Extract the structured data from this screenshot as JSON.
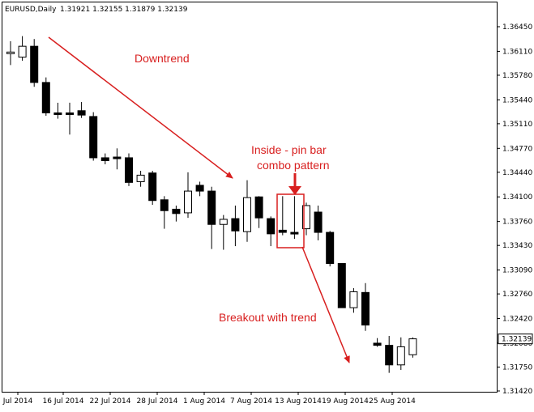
{
  "header": {
    "symbol_label": "EURUSD,Daily",
    "ohlc_values": "1.31921 1.32155 1.31879 1.32139"
  },
  "colors": {
    "annotation": "#d81f1f",
    "candle_bear": "#000000",
    "candle_bull": "#ffffff",
    "frame": "#000000",
    "last_price_box": "#ffffff"
  },
  "chart_data": {
    "type": "candlestick",
    "y_axis_ticks": [
      "1.36450",
      "1.36110",
      "1.35780",
      "1.35440",
      "1.35110",
      "1.34770",
      "1.34440",
      "1.34100",
      "1.33760",
      "1.33430",
      "1.33090",
      "1.32760",
      "1.32420",
      "1.32080",
      "1.31750",
      "1.31420"
    ],
    "x_axis_ticks": [
      "Jul 2014",
      "16 Jul 2014",
      "22 Jul 2014",
      "28 Jul 2014",
      "1 Aug 2014",
      "7 Aug 2014",
      "13 Aug 2014",
      "19 Aug 2014",
      "25 Aug 2014"
    ],
    "ylim": [
      1.314,
      1.367
    ],
    "last_price_label": "1.32139",
    "last_price": 1.32139,
    "candles": [
      {
        "o": 1.361,
        "h": 1.3625,
        "l": 1.3592,
        "c": 1.361
      },
      {
        "o": 1.3603,
        "h": 1.3632,
        "l": 1.3598,
        "c": 1.3618
      },
      {
        "o": 1.3618,
        "h": 1.3628,
        "l": 1.3562,
        "c": 1.3568
      },
      {
        "o": 1.3568,
        "h": 1.3575,
        "l": 1.3522,
        "c": 1.3526
      },
      {
        "o": 1.3526,
        "h": 1.354,
        "l": 1.3518,
        "c": 1.3524
      },
      {
        "o": 1.3526,
        "h": 1.354,
        "l": 1.3496,
        "c": 1.3524
      },
      {
        "o": 1.3529,
        "h": 1.3541,
        "l": 1.3519,
        "c": 1.3523
      },
      {
        "o": 1.3521,
        "h": 1.3527,
        "l": 1.346,
        "c": 1.3464
      },
      {
        "o": 1.3464,
        "h": 1.347,
        "l": 1.3455,
        "c": 1.346
      },
      {
        "o": 1.3465,
        "h": 1.3477,
        "l": 1.3448,
        "c": 1.3463
      },
      {
        "o": 1.3464,
        "h": 1.347,
        "l": 1.3425,
        "c": 1.343
      },
      {
        "o": 1.3431,
        "h": 1.3446,
        "l": 1.3424,
        "c": 1.344
      },
      {
        "o": 1.3443,
        "h": 1.3446,
        "l": 1.3399,
        "c": 1.3405
      },
      {
        "o": 1.3406,
        "h": 1.3411,
        "l": 1.3366,
        "c": 1.3391
      },
      {
        "o": 1.3393,
        "h": 1.3398,
        "l": 1.3376,
        "c": 1.3387
      },
      {
        "o": 1.3388,
        "h": 1.3444,
        "l": 1.3381,
        "c": 1.3418
      },
      {
        "o": 1.3426,
        "h": 1.3431,
        "l": 1.3411,
        "c": 1.3418
      },
      {
        "o": 1.3418,
        "h": 1.3424,
        "l": 1.3338,
        "c": 1.3372
      },
      {
        "o": 1.3372,
        "h": 1.3385,
        "l": 1.3337,
        "c": 1.3379
      },
      {
        "o": 1.338,
        "h": 1.3398,
        "l": 1.3342,
        "c": 1.3363
      },
      {
        "o": 1.3362,
        "h": 1.3433,
        "l": 1.3348,
        "c": 1.3409
      },
      {
        "o": 1.341,
        "h": 1.3411,
        "l": 1.3367,
        "c": 1.3381
      },
      {
        "o": 1.338,
        "h": 1.3383,
        "l": 1.3342,
        "c": 1.3359
      },
      {
        "o": 1.3364,
        "h": 1.3411,
        "l": 1.3357,
        "c": 1.3361
      },
      {
        "o": 1.3361,
        "h": 1.3411,
        "l": 1.3352,
        "c": 1.336
      },
      {
        "o": 1.3366,
        "h": 1.3402,
        "l": 1.3357,
        "c": 1.3398
      },
      {
        "o": 1.3389,
        "h": 1.3398,
        "l": 1.335,
        "c": 1.3361
      },
      {
        "o": 1.3361,
        "h": 1.3363,
        "l": 1.3314,
        "c": 1.3318
      },
      {
        "o": 1.3318,
        "h": 1.3318,
        "l": 1.3257,
        "c": 1.3257
      },
      {
        "o": 1.3257,
        "h": 1.3284,
        "l": 1.325,
        "c": 1.3279
      },
      {
        "o": 1.3278,
        "h": 1.3291,
        "l": 1.3225,
        "c": 1.3233
      },
      {
        "o": 1.3208,
        "h": 1.3215,
        "l": 1.3203,
        "c": 1.3205
      },
      {
        "o": 1.3205,
        "h": 1.3218,
        "l": 1.3167,
        "c": 1.3178
      },
      {
        "o": 1.3178,
        "h": 1.3216,
        "l": 1.3171,
        "c": 1.3203
      },
      {
        "o": 1.3192,
        "h": 1.3216,
        "l": 1.3188,
        "c": 1.3214
      }
    ],
    "x_positions_days": [
      0,
      1,
      2,
      3,
      4,
      5,
      6,
      7,
      8,
      9,
      10,
      11,
      12,
      13,
      14,
      15,
      16,
      17,
      18,
      19,
      20,
      21,
      22,
      23,
      24,
      25,
      26,
      27,
      28,
      29,
      30,
      31,
      32,
      33,
      34
    ],
    "annotations": [
      {
        "id": "downtrend",
        "text": "Downtrend"
      },
      {
        "id": "pattern",
        "lines": [
          "Inside - pin bar",
          "combo pattern"
        ]
      },
      {
        "id": "breakout",
        "text": "Breakout with trend"
      }
    ]
  }
}
